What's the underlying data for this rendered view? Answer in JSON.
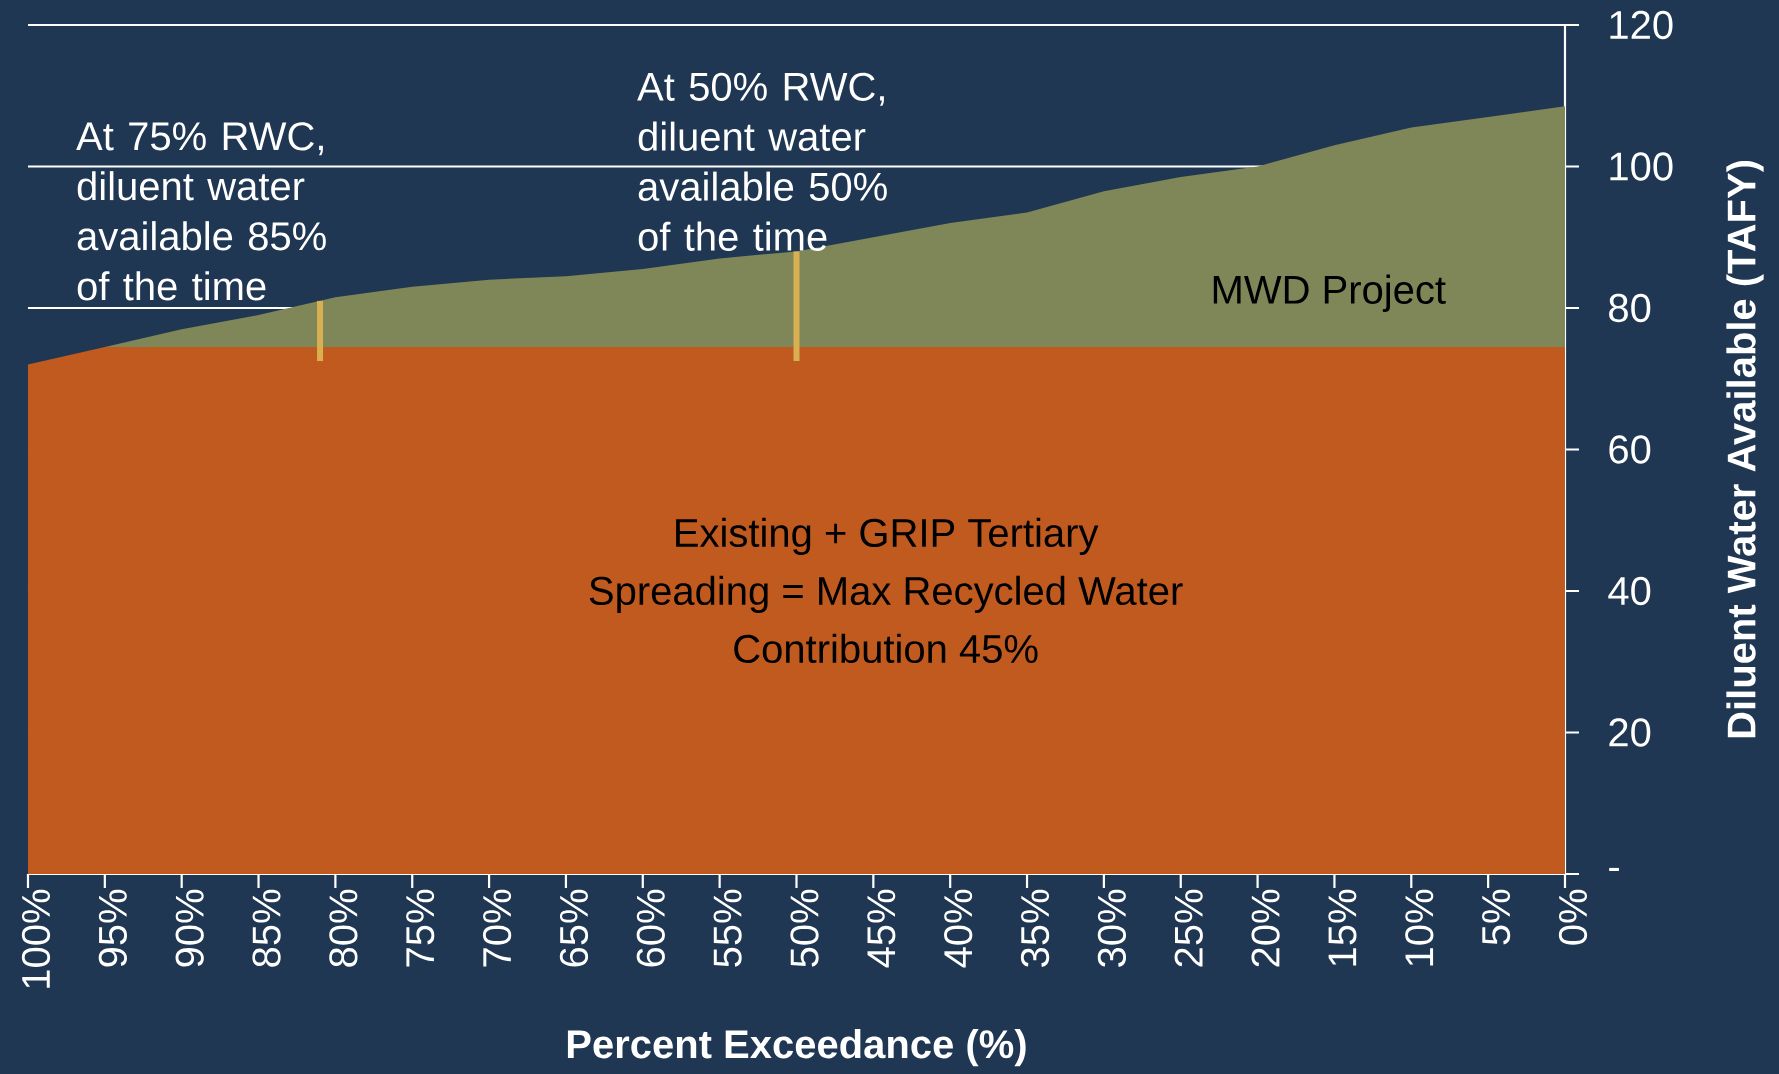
{
  "chart_data": {
    "type": "area",
    "stacked": true,
    "x": [
      100,
      95,
      90,
      85,
      80,
      75,
      70,
      65,
      60,
      55,
      50,
      45,
      40,
      35,
      30,
      25,
      20,
      15,
      10,
      5,
      0
    ],
    "xlim": [
      100,
      0
    ],
    "xticks": [
      {
        "value": 100,
        "label": "100%"
      },
      {
        "value": 95,
        "label": "95%"
      },
      {
        "value": 90,
        "label": "90%"
      },
      {
        "value": 85,
        "label": "85%"
      },
      {
        "value": 80,
        "label": "80%"
      },
      {
        "value": 75,
        "label": "75%"
      },
      {
        "value": 70,
        "label": "70%"
      },
      {
        "value": 65,
        "label": "65%"
      },
      {
        "value": 60,
        "label": "60%"
      },
      {
        "value": 55,
        "label": "55%"
      },
      {
        "value": 50,
        "label": "50%"
      },
      {
        "value": 45,
        "label": "45%"
      },
      {
        "value": 40,
        "label": "40%"
      },
      {
        "value": 35,
        "label": "35%"
      },
      {
        "value": 30,
        "label": "30%"
      },
      {
        "value": 25,
        "label": "25%"
      },
      {
        "value": 20,
        "label": "20%"
      },
      {
        "value": 15,
        "label": "15%"
      },
      {
        "value": 10,
        "label": "10%"
      },
      {
        "value": 5,
        "label": "5%"
      },
      {
        "value": 0,
        "label": "0%"
      }
    ],
    "ylim": [
      0,
      120
    ],
    "yticks": [
      {
        "value": 0,
        "label": "-"
      },
      20,
      40,
      60,
      80,
      100,
      120
    ],
    "xlabel": "Percent Exceedance (%)",
    "ylabel": "Diluent Water Available (TAFY)",
    "grid": "y",
    "series": [
      {
        "name": "Existing + GRIP Tertiary Spreading = Max Recycled Water Contribution 45%",
        "color": "#c15a1f",
        "values": [
          72,
          74.5,
          74.5,
          74.5,
          74.5,
          74.5,
          74.5,
          74.5,
          74.5,
          74.5,
          74.5,
          74.5,
          74.5,
          74.5,
          74.5,
          74.5,
          74.5,
          74.5,
          74.5,
          74.5,
          74.5
        ]
      },
      {
        "name": "MWD Project",
        "color": "#7f8658",
        "values": [
          0,
          0,
          2.5,
          4.5,
          7,
          8.5,
          9.5,
          10,
          11,
          12.5,
          13.5,
          15.5,
          17.5,
          19,
          22,
          24,
          25.5,
          28.5,
          31,
          32.5,
          34
        ]
      }
    ],
    "annotations": [
      {
        "text": "At 75% RWC, diluent water available 85% of the time",
        "x": 81,
        "y": 81
      },
      {
        "text": "At 50% RWC, diluent water available 50% of the time",
        "x": 50,
        "y": 88
      }
    ]
  }
}
